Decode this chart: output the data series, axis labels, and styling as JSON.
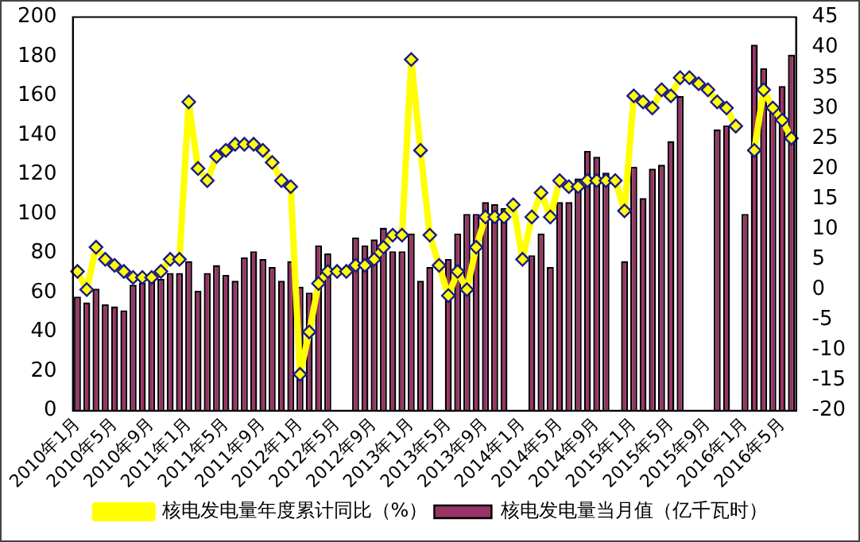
{
  "chart_data": {
    "type": "bar",
    "categories": [
      "2010年1月",
      null,
      null,
      null,
      "2010年5月",
      null,
      null,
      null,
      "2010年9月",
      null,
      null,
      null,
      "2011年1月",
      null,
      null,
      null,
      "2011年5月",
      null,
      null,
      null,
      "2011年9月",
      null,
      null,
      null,
      "2012年1月",
      null,
      null,
      null,
      "2012年5月",
      null,
      null,
      null,
      "2012年9月",
      null,
      null,
      null,
      "2013年1月",
      null,
      null,
      null,
      "2013年5月",
      null,
      null,
      null,
      "2013年9月",
      null,
      null,
      null,
      "2014年1月",
      null,
      null,
      null,
      "2014年5月",
      null,
      null,
      null,
      "2014年9月",
      null,
      null,
      null,
      "2015年1月",
      null,
      null,
      null,
      "2015年5月",
      null,
      null,
      null,
      "2015年9月",
      null,
      null,
      null,
      "2016年1月",
      null,
      null,
      null,
      "2016年5月",
      null
    ],
    "series": [
      {
        "name": "核电发电量当月值（亿千瓦时）",
        "color": "#993366",
        "values": [
          58,
          55,
          62,
          54,
          53,
          51,
          64,
          65,
          66,
          67,
          70,
          70,
          76,
          61,
          70,
          74,
          69,
          66,
          78,
          81,
          77,
          73,
          66,
          76,
          63,
          60,
          84,
          80,
          null,
          null,
          88,
          84,
          87,
          93,
          81,
          81,
          90,
          66,
          73,
          null,
          77,
          90,
          100,
          100,
          106,
          105,
          103,
          null,
          null,
          79,
          90,
          73,
          106,
          106,
          118,
          132,
          129,
          121,
          null,
          76,
          124,
          108,
          123,
          125,
          137,
          160,
          null,
          null,
          null,
          143,
          145,
          null,
          100,
          186,
          174,
          152,
          165,
          181
        ]
      },
      {
        "name": "核电发电量年度累计同比（%）",
        "type": "line",
        "axis": "y2",
        "color": "#ffff00",
        "marker": "diamond",
        "values": [
          3,
          0,
          7,
          5,
          4,
          3,
          2,
          2,
          2,
          3,
          5,
          5,
          31,
          20,
          18,
          22,
          23,
          24,
          24,
          24,
          23,
          21,
          18,
          17,
          -14,
          -7,
          1,
          3,
          3,
          3,
          4,
          4,
          5,
          7,
          9,
          9,
          38,
          23,
          9,
          4,
          -1,
          3,
          0,
          7,
          12,
          12,
          12,
          14,
          5,
          12,
          16,
          12,
          18,
          17,
          17,
          18,
          18,
          18,
          18,
          13,
          32,
          31,
          30,
          33,
          32,
          35,
          35,
          34,
          33,
          31,
          30,
          27,
          null,
          23,
          33,
          30,
          28,
          25
        ]
      }
    ],
    "ylim": [
      0,
      200
    ],
    "yticks": [
      0,
      20,
      40,
      60,
      80,
      100,
      120,
      140,
      160,
      180,
      200
    ],
    "y2lim": [
      -20,
      45
    ],
    "y2ticks": [
      -20,
      -15,
      -10,
      -5,
      0,
      5,
      10,
      15,
      20,
      25,
      30,
      35,
      40,
      45
    ],
    "grid": false,
    "legend": "bottom"
  }
}
